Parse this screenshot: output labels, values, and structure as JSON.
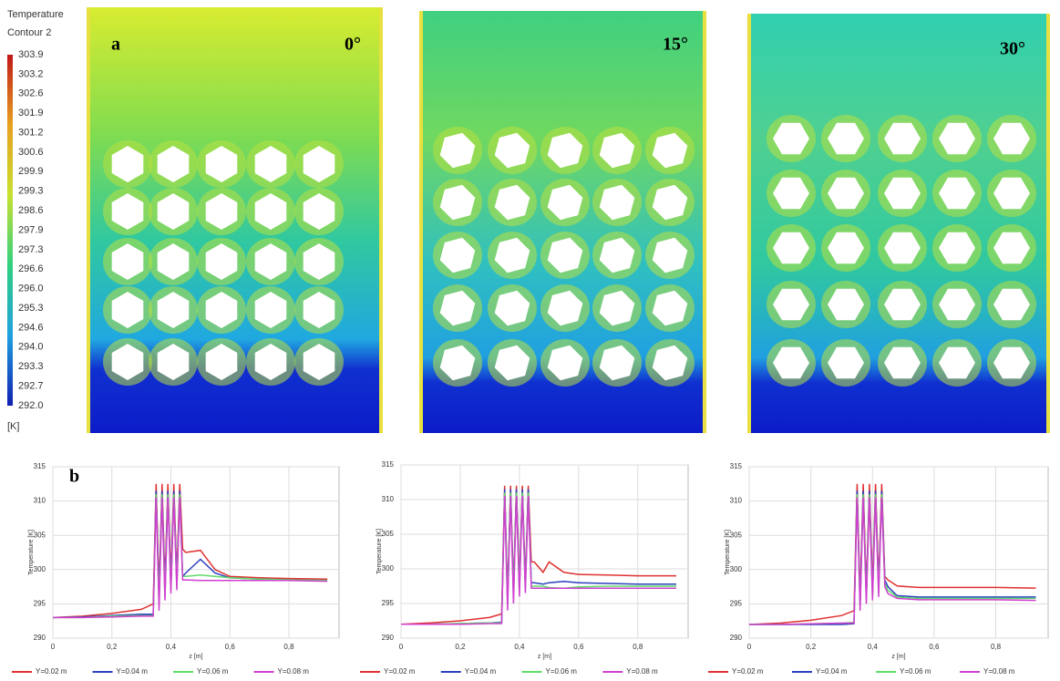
{
  "colorbar": {
    "title": "Temperature",
    "subtitle": "Contour 2",
    "labels": [
      "303.9",
      "303.2",
      "302.6",
      "301.9",
      "301.2",
      "300.6",
      "299.9",
      "299.3",
      "298.6",
      "297.9",
      "297.3",
      "296.6",
      "296.0",
      "295.3",
      "294.6",
      "294.0",
      "293.3",
      "292.7",
      "292.0"
    ],
    "unit": "[K]"
  },
  "contours": [
    {
      "label": "a",
      "angle": "0°"
    },
    {
      "angle": "15°"
    },
    {
      "angle": "30°"
    }
  ],
  "panel_label_b": "b",
  "chart_data": [
    {
      "type": "line",
      "xlabel": "z [m]",
      "ylabel": "Temperature [K]",
      "grid": true,
      "xlim": [
        0,
        0.97
      ],
      "ylim": [
        290,
        315
      ],
      "xticks": [
        0,
        {
          "value": 0.2,
          "label": "0,2"
        },
        {
          "value": 0.4,
          "label": "0,4"
        },
        {
          "value": 0.6,
          "label": "0,6"
        },
        {
          "value": 0.8,
          "label": "0,8"
        }
      ],
      "yticks": [
        290,
        295,
        300,
        305,
        310,
        315
      ],
      "x": [
        0,
        0.1,
        0.2,
        0.3,
        0.34,
        0.35,
        0.36,
        0.37,
        0.38,
        0.39,
        0.4,
        0.41,
        0.42,
        0.43,
        0.44,
        0.45,
        0.5,
        0.55,
        0.6,
        0.7,
        0.8,
        0.93
      ],
      "series": [
        {
          "name": "Y=0.02 m",
          "color": "#e03030",
          "values": [
            293,
            293.2,
            293.6,
            294.2,
            295,
            312.5,
            297,
            312.5,
            298,
            312.5,
            298.5,
            312.5,
            299,
            312.5,
            303,
            302.5,
            302.8,
            300,
            299,
            298.8,
            298.7,
            298.6
          ]
        },
        {
          "name": "Y=0.04 m",
          "color": "#2a3fbf",
          "values": [
            293,
            293.1,
            293.3,
            293.5,
            293.5,
            311.5,
            296,
            311.5,
            297,
            311.5,
            297.5,
            311.5,
            298,
            311.5,
            299,
            299.5,
            301.5,
            299.5,
            298.8,
            298.6,
            298.5,
            298.4
          ]
        },
        {
          "name": "Y=0.06 m",
          "color": "#5fdc6a",
          "values": [
            293,
            293,
            293.2,
            293.3,
            293.3,
            311,
            295,
            311,
            296,
            311,
            297,
            311,
            297.5,
            311,
            299,
            299,
            299.2,
            299,
            298.8,
            298.6,
            298.5,
            298.4
          ]
        },
        {
          "name": "Y=0.08 m",
          "color": "#d040d0",
          "values": [
            293,
            293,
            293.1,
            293.2,
            293.2,
            310.5,
            294,
            310.5,
            295.5,
            310.5,
            296.5,
            310.5,
            297,
            310.5,
            298.5,
            298.5,
            298.4,
            298.4,
            298.4,
            298.4,
            298.4,
            298.3
          ]
        }
      ]
    },
    {
      "type": "line",
      "xlabel": "z [m]",
      "ylabel": "Temperature [K]",
      "grid": true,
      "xlim": [
        0,
        0.97
      ],
      "ylim": [
        290,
        315
      ],
      "xticks": [
        0,
        {
          "value": 0.2,
          "label": "0,2"
        },
        {
          "value": 0.4,
          "label": "0,4"
        },
        {
          "value": 0.6,
          "label": "0,6"
        },
        {
          "value": 0.8,
          "label": "0,8"
        }
      ],
      "yticks": [
        290,
        295,
        300,
        305,
        310,
        315
      ],
      "x": [
        0,
        0.1,
        0.2,
        0.3,
        0.34,
        0.35,
        0.36,
        0.37,
        0.38,
        0.39,
        0.4,
        0.41,
        0.42,
        0.43,
        0.44,
        0.45,
        0.48,
        0.5,
        0.55,
        0.6,
        0.7,
        0.8,
        0.93
      ],
      "series": [
        {
          "name": "Y=0.02 m",
          "color": "#e03030",
          "values": [
            292,
            292.2,
            292.5,
            293,
            293.5,
            312,
            296,
            312,
            297,
            312,
            297.5,
            312,
            298,
            312,
            301,
            301,
            299.5,
            301,
            299.5,
            299.2,
            299.1,
            299,
            299
          ]
        },
        {
          "name": "Y=0.04 m",
          "color": "#2a3fbf",
          "values": [
            292,
            292,
            292.1,
            292.2,
            292.3,
            311.5,
            295.5,
            311.5,
            296.5,
            311.5,
            297,
            311.5,
            297.5,
            311.5,
            298,
            298,
            297.8,
            298,
            298.2,
            298,
            297.9,
            297.8,
            297.8
          ]
        },
        {
          "name": "Y=0.06 m",
          "color": "#5fdc6a",
          "values": [
            292,
            292,
            292.1,
            292.2,
            292.2,
            311,
            295,
            311,
            296,
            311,
            296.5,
            311,
            297,
            311,
            297.5,
            297.5,
            297.5,
            297.3,
            297.2,
            297.4,
            297.5,
            297.5,
            297.5
          ]
        },
        {
          "name": "Y=0.08 m",
          "color": "#d040d0",
          "values": [
            292,
            292,
            292,
            292.1,
            292.1,
            310.5,
            294,
            310.5,
            295,
            310.5,
            296,
            310.5,
            296.5,
            310.5,
            297.2,
            297.2,
            297.2,
            297.2,
            297.2,
            297.2,
            297.2,
            297.2,
            297.2
          ]
        }
      ]
    },
    {
      "type": "line",
      "xlabel": "z [m]",
      "ylabel": "Temperature [K]",
      "grid": true,
      "xlim": [
        0,
        0.97
      ],
      "ylim": [
        290,
        315
      ],
      "xticks": [
        0,
        {
          "value": 0.2,
          "label": "0,2"
        },
        {
          "value": 0.4,
          "label": "0,4"
        },
        {
          "value": 0.6,
          "label": "0,6"
        },
        {
          "value": 0.8,
          "label": "0,8"
        }
      ],
      "yticks": [
        290,
        295,
        300,
        305,
        310,
        315
      ],
      "x": [
        0,
        0.1,
        0.2,
        0.3,
        0.34,
        0.35,
        0.36,
        0.37,
        0.38,
        0.39,
        0.4,
        0.41,
        0.42,
        0.43,
        0.44,
        0.45,
        0.48,
        0.55,
        0.6,
        0.7,
        0.8,
        0.93
      ],
      "series": [
        {
          "name": "Y=0.02 m",
          "color": "#e03030",
          "values": [
            292,
            292.2,
            292.6,
            293.3,
            294,
            312.5,
            296,
            312.5,
            297,
            312.5,
            297.5,
            312.5,
            298,
            312.5,
            299,
            298.5,
            297.6,
            297.4,
            297.4,
            297.4,
            297.4,
            297.3
          ]
        },
        {
          "name": "Y=0.04 m",
          "color": "#2a3fbf",
          "values": [
            292,
            292,
            292,
            292,
            292.1,
            311.5,
            295,
            311.5,
            296,
            311.5,
            296.5,
            311.5,
            297,
            311.5,
            298.5,
            297.5,
            296.2,
            296,
            296,
            296,
            296,
            296
          ]
        },
        {
          "name": "Y=0.06 m",
          "color": "#5fdc6a",
          "values": [
            292,
            292,
            292.1,
            292.2,
            292.3,
            311,
            294.5,
            311,
            295.5,
            311,
            296,
            311,
            296.5,
            311,
            298,
            297,
            296,
            295.8,
            295.8,
            295.8,
            295.8,
            295.8
          ]
        },
        {
          "name": "Y=0.08 m",
          "color": "#d040d0",
          "values": [
            292,
            292,
            292.1,
            292.2,
            292.2,
            310.5,
            294,
            310.5,
            295,
            310.5,
            295.5,
            310.5,
            296,
            310.5,
            297.5,
            296.5,
            295.8,
            295.6,
            295.6,
            295.6,
            295.6,
            295.5
          ]
        }
      ]
    }
  ]
}
